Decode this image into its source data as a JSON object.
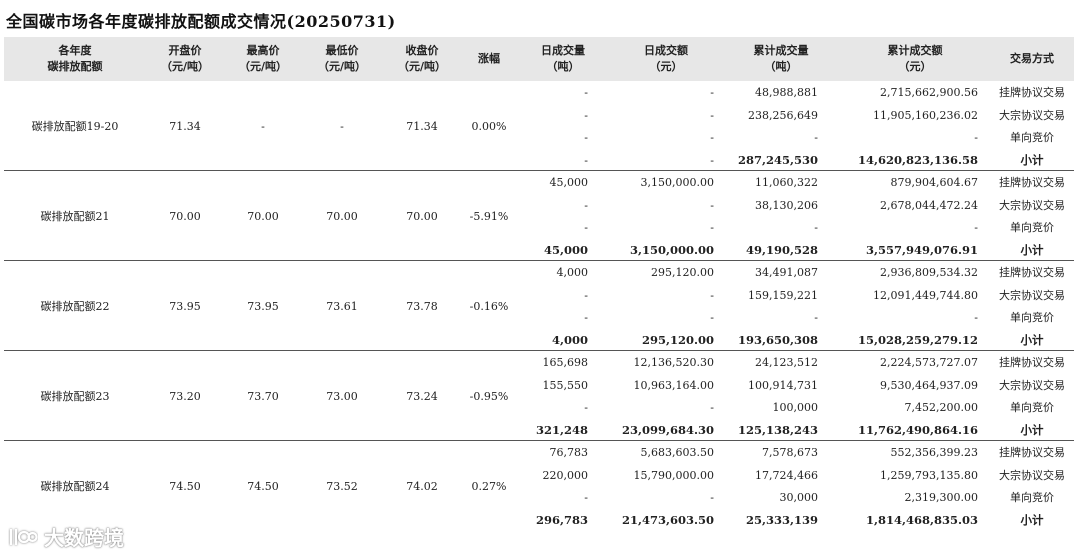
{
  "title": "全国碳市场各年度碳排放配额成交情况(20250731)",
  "headers": [
    [
      "各年度",
      "碳排放配额"
    ],
    [
      "开盘价",
      "（元/吨）"
    ],
    [
      "最高价",
      "（元/吨）"
    ],
    [
      "最低价",
      "（元/吨）"
    ],
    [
      "收盘价",
      "（元/吨）"
    ],
    [
      "涨幅"
    ],
    [
      "日成交量",
      "（吨）"
    ],
    [
      "日成交额",
      "（元）"
    ],
    [
      "累计成交量",
      "（吨）"
    ],
    [
      "累计成交额",
      "（元）"
    ],
    [
      "交易方式"
    ]
  ],
  "groups": [
    {
      "name": "碳排放配额19-20",
      "open": "71.34",
      "high": "-",
      "low": "-",
      "close": "71.34",
      "change": "0.00%",
      "rows": [
        {
          "dv": "-",
          "da": "-",
          "cv": "48,988,881",
          "ca": "2,715,662,900.56",
          "method": "挂牌协议交易"
        },
        {
          "dv": "-",
          "da": "-",
          "cv": "238,256,649",
          "ca": "11,905,160,236.02",
          "method": "大宗协议交易"
        },
        {
          "dv": "-",
          "da": "-",
          "cv": "-",
          "ca": "-",
          "method": "单向竞价"
        },
        {
          "dv": "-",
          "da": "-",
          "cv": "287,245,530",
          "ca": "14,620,823,136.58",
          "method": "小计"
        }
      ]
    },
    {
      "name": "碳排放配额21",
      "open": "70.00",
      "high": "70.00",
      "low": "70.00",
      "close": "70.00",
      "change": "-5.91%",
      "rows": [
        {
          "dv": "45,000",
          "da": "3,150,000.00",
          "cv": "11,060,322",
          "ca": "879,904,604.67",
          "method": "挂牌协议交易"
        },
        {
          "dv": "-",
          "da": "-",
          "cv": "38,130,206",
          "ca": "2,678,044,472.24",
          "method": "大宗协议交易"
        },
        {
          "dv": "-",
          "da": "-",
          "cv": "-",
          "ca": "-",
          "method": "单向竞价"
        },
        {
          "dv": "45,000",
          "da": "3,150,000.00",
          "cv": "49,190,528",
          "ca": "3,557,949,076.91",
          "method": "小计"
        }
      ]
    },
    {
      "name": "碳排放配额22",
      "open": "73.95",
      "high": "73.95",
      "low": "73.61",
      "close": "73.78",
      "change": "-0.16%",
      "rows": [
        {
          "dv": "4,000",
          "da": "295,120.00",
          "cv": "34,491,087",
          "ca": "2,936,809,534.32",
          "method": "挂牌协议交易"
        },
        {
          "dv": "-",
          "da": "-",
          "cv": "159,159,221",
          "ca": "12,091,449,744.80",
          "method": "大宗协议交易"
        },
        {
          "dv": "-",
          "da": "-",
          "cv": "-",
          "ca": "-",
          "method": "单向竞价"
        },
        {
          "dv": "4,000",
          "da": "295,120.00",
          "cv": "193,650,308",
          "ca": "15,028,259,279.12",
          "method": "小计"
        }
      ]
    },
    {
      "name": "碳排放配额23",
      "open": "73.20",
      "high": "73.70",
      "low": "73.00",
      "close": "73.24",
      "change": "-0.95%",
      "rows": [
        {
          "dv": "165,698",
          "da": "12,136,520.30",
          "cv": "24,123,512",
          "ca": "2,224,573,727.07",
          "method": "挂牌协议交易"
        },
        {
          "dv": "155,550",
          "da": "10,963,164.00",
          "cv": "100,914,731",
          "ca": "9,530,464,937.09",
          "method": "大宗协议交易"
        },
        {
          "dv": "-",
          "da": "-",
          "cv": "100,000",
          "ca": "7,452,200.00",
          "method": "单向竞价"
        },
        {
          "dv": "321,248",
          "da": "23,099,684.30",
          "cv": "125,138,243",
          "ca": "11,762,490,864.16",
          "method": "小计"
        }
      ]
    },
    {
      "name": "碳排放配额24",
      "open": "74.50",
      "high": "74.50",
      "low": "73.52",
      "close": "74.02",
      "change": "0.27%",
      "rows": [
        {
          "dv": "76,783",
          "da": "5,683,603.50",
          "cv": "7,578,673",
          "ca": "552,356,399.23",
          "method": "挂牌协议交易"
        },
        {
          "dv": "220,000",
          "da": "15,790,000.00",
          "cv": "17,724,466",
          "ca": "1,259,793,135.80",
          "method": "大宗协议交易"
        },
        {
          "dv": "-",
          "da": "-",
          "cv": "30,000",
          "ca": "2,319,300.00",
          "method": "单向竞价"
        },
        {
          "dv": "296,783",
          "da": "21,473,603.50",
          "cv": "25,333,139",
          "ca": "1,814,468,835.03",
          "method": "小计"
        }
      ]
    }
  ],
  "watermark": {
    "text": "大数跨境",
    "icon": "logo-icon"
  }
}
